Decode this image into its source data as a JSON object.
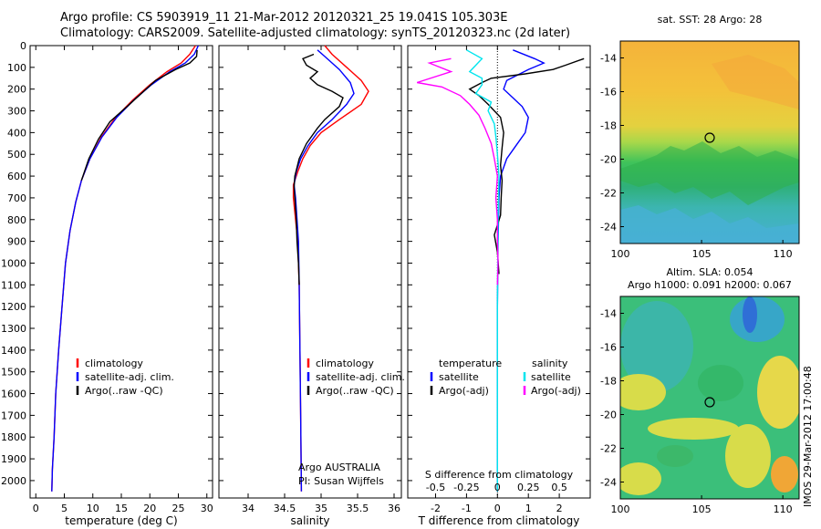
{
  "header": {
    "line1": "Argo profile: CS 5903919_11 21-Mar-2012 20120321_25 19.041S 105.303E",
    "line2": "Climatology: CARS2009. Satellite-adjusted climatology: synTS_20120323.nc (2d later)"
  },
  "footer_vertical": "IMOS 29-Mar-2012 17:00:48",
  "colors": {
    "climatology": "#ff0000",
    "satellite": "#0000ff",
    "argo": "#000000",
    "sal_satellite": "#00e5ee",
    "sal_argo": "#ff00ff"
  },
  "chart_data": [
    {
      "id": "temperature",
      "type": "line",
      "xlabel": "temperature (deg C)",
      "xlim": [
        -1,
        31
      ],
      "xticks": [
        0,
        5,
        10,
        15,
        20,
        25,
        30
      ],
      "ylim": [
        0,
        2080
      ],
      "yticks": [
        0,
        100,
        200,
        300,
        400,
        500,
        600,
        700,
        800,
        900,
        1000,
        1100,
        1200,
        1300,
        1400,
        1500,
        1600,
        1700,
        1800,
        1900,
        2000
      ],
      "legend": [
        "climatology",
        "satellite-adj. clim.",
        "Argo(..raw -QC)"
      ],
      "series": [
        {
          "name": "climatology",
          "color": "#ff0000",
          "points": [
            [
              28,
              0
            ],
            [
              27,
              40
            ],
            [
              25.5,
              80
            ],
            [
              23,
              120
            ],
            [
              20,
              180
            ],
            [
              17,
              250
            ],
            [
              14,
              330
            ],
            [
              11.5,
              420
            ],
            [
              9.5,
              520
            ],
            [
              8,
              620
            ],
            [
              7,
              720
            ],
            [
              6,
              850
            ],
            [
              5.2,
              1000
            ],
            [
              4.6,
              1200
            ],
            [
              4,
              1400
            ],
            [
              3.5,
              1600
            ],
            [
              3.2,
              1800
            ],
            [
              2.9,
              1950
            ],
            [
              2.8,
              2050
            ]
          ]
        },
        {
          "name": "satellite-adj. clim.",
          "color": "#0000ff",
          "points": [
            [
              28.5,
              0
            ],
            [
              27.8,
              40
            ],
            [
              26.2,
              80
            ],
            [
              23.5,
              120
            ],
            [
              20.3,
              180
            ],
            [
              17.2,
              250
            ],
            [
              14.2,
              330
            ],
            [
              11.6,
              420
            ],
            [
              9.5,
              520
            ],
            [
              8,
              620
            ],
            [
              7,
              720
            ],
            [
              6,
              850
            ],
            [
              5.2,
              1000
            ],
            [
              4.6,
              1200
            ],
            [
              4,
              1400
            ],
            [
              3.5,
              1600
            ],
            [
              3.2,
              1800
            ],
            [
              2.9,
              1950
            ],
            [
              2.8,
              2050
            ]
          ]
        },
        {
          "name": "Argo(..raw -QC)",
          "color": "#000000",
          "points": [
            [
              28.3,
              20
            ],
            [
              28.2,
              50
            ],
            [
              27,
              80
            ],
            [
              24.5,
              110
            ],
            [
              21,
              160
            ],
            [
              18.5,
              220
            ],
            [
              16,
              280
            ],
            [
              13,
              350
            ],
            [
              11,
              430
            ],
            [
              9.3,
              520
            ],
            [
              8,
              620
            ]
          ]
        }
      ]
    },
    {
      "id": "salinity",
      "type": "line",
      "xlabel": "salinity",
      "xlim": [
        33.6,
        36.1
      ],
      "xticks": [
        34,
        34.5,
        35,
        35.5,
        36
      ],
      "ylim": [
        0,
        2080
      ],
      "legend": [
        "climatology",
        "satellite-adj. clim.",
        "Argo(..raw -QC)"
      ],
      "annotation": [
        "Argo AUSTRALIA",
        "PI: Susan Wijffels"
      ],
      "series": [
        {
          "name": "climatology",
          "color": "#ff0000",
          "points": [
            [
              35.05,
              0
            ],
            [
              35.15,
              40
            ],
            [
              35.35,
              100
            ],
            [
              35.55,
              160
            ],
            [
              35.65,
              210
            ],
            [
              35.55,
              270
            ],
            [
              35.25,
              340
            ],
            [
              35.0,
              400
            ],
            [
              34.85,
              460
            ],
            [
              34.75,
              520
            ],
            [
              34.68,
              580
            ],
            [
              34.62,
              640
            ],
            [
              34.62,
              700
            ],
            [
              34.65,
              800
            ],
            [
              34.68,
              900
            ],
            [
              34.7,
              1100
            ],
            [
              34.71,
              1400
            ],
            [
              34.72,
              1700
            ],
            [
              34.73,
              2050
            ]
          ]
        },
        {
          "name": "satellite-adj. clim.",
          "color": "#0000ff",
          "points": [
            [
              34.95,
              20
            ],
            [
              35.05,
              50
            ],
            [
              35.25,
              110
            ],
            [
              35.4,
              170
            ],
            [
              35.45,
              220
            ],
            [
              35.35,
              270
            ],
            [
              35.15,
              340
            ],
            [
              34.95,
              400
            ],
            [
              34.82,
              460
            ],
            [
              34.72,
              520
            ],
            [
              34.66,
              580
            ],
            [
              34.63,
              640
            ],
            [
              34.65,
              700
            ],
            [
              34.67,
              800
            ],
            [
              34.69,
              900
            ],
            [
              34.7,
              1100
            ],
            [
              34.71,
              1400
            ],
            [
              34.72,
              1700
            ],
            [
              34.73,
              2050
            ]
          ]
        },
        {
          "name": "Argo(..raw -QC)",
          "color": "#000000",
          "points": [
            [
              34.9,
              40
            ],
            [
              34.75,
              60
            ],
            [
              34.8,
              90
            ],
            [
              34.95,
              120
            ],
            [
              34.85,
              150
            ],
            [
              34.95,
              180
            ],
            [
              35.15,
              210
            ],
            [
              35.3,
              240
            ],
            [
              35.25,
              280
            ],
            [
              35.05,
              340
            ],
            [
              34.95,
              380
            ],
            [
              34.8,
              450
            ],
            [
              34.7,
              520
            ],
            [
              34.64,
              600
            ],
            [
              34.63,
              650
            ],
            [
              34.64,
              700
            ],
            [
              34.66,
              800
            ],
            [
              34.67,
              900
            ],
            [
              34.69,
              1000
            ],
            [
              34.7,
              1100
            ]
          ]
        }
      ]
    },
    {
      "id": "difference",
      "type": "line",
      "xlabel": "T difference from climatology",
      "xlabel_top": "S difference from climatology",
      "xlim": [
        -2.9,
        3.0
      ],
      "xticks": [
        -2,
        -1,
        0,
        1,
        2
      ],
      "s_ticks": [
        -0.5,
        -0.25,
        0,
        0.25,
        0.5
      ],
      "ylim": [
        0,
        2080
      ],
      "legend_left_title": "temperature",
      "legend_right_title": "salinity",
      "legend_left": [
        "satellite",
        "Argo(-adj)"
      ],
      "legend_right": [
        "satellite",
        "Argo(-adj)"
      ],
      "series": [
        {
          "name": "T satellite",
          "color": "#0000ff",
          "points": [
            [
              0.5,
              20
            ],
            [
              1.2,
              60
            ],
            [
              1.5,
              80
            ],
            [
              1.0,
              110
            ],
            [
              0.3,
              160
            ],
            [
              0.2,
              200
            ],
            [
              0.5,
              240
            ],
            [
              0.8,
              280
            ],
            [
              1.0,
              330
            ],
            [
              0.9,
              400
            ],
            [
              0.6,
              460
            ],
            [
              0.3,
              520
            ],
            [
              0.1,
              600
            ],
            [
              0.05,
              700
            ],
            [
              0.02,
              900
            ],
            [
              0,
              1200
            ],
            [
              0,
              1600
            ],
            [
              0,
              2050
            ]
          ]
        },
        {
          "name": "T Argo(-adj)",
          "color": "#000000",
          "points": [
            [
              2.8,
              60
            ],
            [
              2.2,
              90
            ],
            [
              1.8,
              110
            ],
            [
              0.9,
              130
            ],
            [
              -0.2,
              150
            ],
            [
              -0.5,
              170
            ],
            [
              -0.9,
              200
            ],
            [
              -0.6,
              230
            ],
            [
              -0.3,
              270
            ],
            [
              0.1,
              330
            ],
            [
              0.2,
              400
            ],
            [
              0.15,
              470
            ],
            [
              0.1,
              550
            ],
            [
              0.15,
              620
            ],
            [
              0.12,
              700
            ],
            [
              0.1,
              780
            ],
            [
              -0.1,
              870
            ],
            [
              0,
              950
            ],
            [
              0.05,
              1050
            ]
          ]
        },
        {
          "name": "S satellite",
          "color": "#00e5ee",
          "points": [
            [
              -1.0,
              20
            ],
            [
              -0.5,
              60
            ],
            [
              -0.7,
              90
            ],
            [
              -0.9,
              120
            ],
            [
              -0.5,
              150
            ],
            [
              -0.5,
              180
            ],
            [
              -0.7,
              220
            ],
            [
              -0.2,
              260
            ],
            [
              -0.3,
              300
            ],
            [
              -0.1,
              360
            ],
            [
              -0.05,
              420
            ],
            [
              0,
              500
            ],
            [
              0.05,
              600
            ],
            [
              0.02,
              800
            ],
            [
              0,
              1200
            ],
            [
              0,
              1600
            ],
            [
              0,
              2050
            ]
          ]
        },
        {
          "name": "S Argo(-adj)",
          "color": "#ff00ff",
          "points": [
            [
              -1.5,
              60
            ],
            [
              -2.2,
              80
            ],
            [
              -1.5,
              120
            ],
            [
              -2.6,
              170
            ],
            [
              -1.8,
              190
            ],
            [
              -1.2,
              230
            ],
            [
              -0.9,
              270
            ],
            [
              -0.6,
              320
            ],
            [
              -0.4,
              380
            ],
            [
              -0.2,
              450
            ],
            [
              -0.1,
              520
            ],
            [
              0,
              600
            ],
            [
              -0.05,
              700
            ],
            [
              0,
              800
            ],
            [
              0,
              900
            ],
            [
              0.02,
              1000
            ],
            [
              0,
              1100
            ]
          ]
        }
      ]
    },
    {
      "id": "sst-map",
      "type": "heatmap",
      "title": "sat. SST: 28 Argo: 28",
      "xlim": [
        100,
        111
      ],
      "ylim": [
        -25,
        -13
      ],
      "xticks": [
        100,
        105,
        110
      ],
      "yticks": [
        -24,
        -22,
        -20,
        -18,
        -16,
        -14
      ],
      "marker": [
        105.3,
        -19.04
      ]
    },
    {
      "id": "sla-map",
      "type": "heatmap",
      "title_line1": "Altim. SLA: 0.054",
      "title_line2": "Argo h1000: 0.091 h2000: 0.067",
      "xlim": [
        100,
        111
      ],
      "ylim": [
        -25,
        -13
      ],
      "xticks": [
        100,
        105,
        110
      ],
      "yticks": [
        -24,
        -22,
        -20,
        -18,
        -16,
        -14
      ],
      "marker": [
        105.3,
        -19.04
      ]
    }
  ]
}
